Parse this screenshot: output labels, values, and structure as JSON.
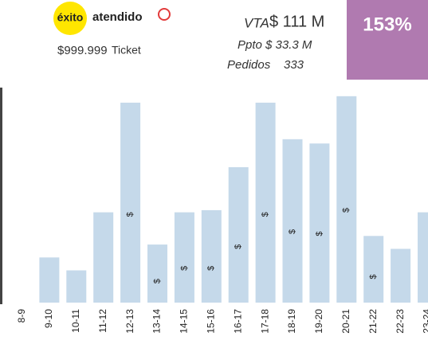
{
  "header": {
    "logo_brand": "éxito",
    "logo_text": "atendido",
    "ticket_value": "$999.999",
    "ticket_label": "Ticket",
    "vta_label": "VTA",
    "vta_value": "$ 111 M",
    "ppto": "Ppto $ 33.3 M",
    "pedidos_label": "Pedidos",
    "pedidos_value": "333",
    "percent": "153%"
  },
  "chart_data": {
    "type": "bar",
    "color": "#c5d9ea",
    "categories": [
      "8-9",
      "9-10",
      "10-11",
      "11-12",
      "12-13",
      "13-14",
      "14-15",
      "15-16",
      "16-17",
      "17-18",
      "18-19",
      "19-20",
      "20-21",
      "21-22",
      "22-23",
      "23-24"
    ],
    "values": [
      null,
      21,
      15,
      42,
      93,
      27,
      42,
      43,
      63,
      93,
      76,
      74,
      96,
      31,
      25,
      42
    ],
    "markers": {
      "label": "$",
      "values": [
        null,
        null,
        null,
        null,
        41,
        10,
        16,
        16,
        26,
        41,
        33,
        32,
        43,
        12,
        null,
        null
      ]
    },
    "ylim": [
      0,
      100
    ]
  }
}
